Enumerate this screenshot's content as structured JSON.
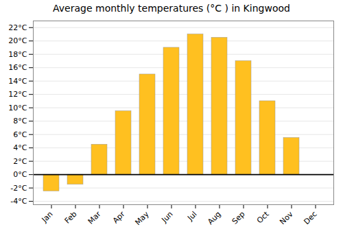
{
  "chart_data": {
    "type": "bar",
    "title": "Average monthly temperatures (°C ) in Kingwood",
    "categories": [
      "Jan",
      "Feb",
      "Mar",
      "Apr",
      "May",
      "Jun",
      "Jul",
      "Aug",
      "Sep",
      "Oct",
      "Nov",
      "Dec"
    ],
    "values": [
      -2.5,
      -1.5,
      4.5,
      9.5,
      15.0,
      19.0,
      21.0,
      20.5,
      17.0,
      11.0,
      5.5,
      0.0
    ],
    "color": "#FFC020",
    "ylim": [
      -4.5,
      23
    ],
    "yticks": [
      {
        "value": -4,
        "label": "-4°C"
      },
      {
        "value": -2,
        "label": "-2°C"
      },
      {
        "value": 0,
        "label": "0°C"
      },
      {
        "value": 2,
        "label": "2°C"
      },
      {
        "value": 4,
        "label": "4°C"
      },
      {
        "value": 6,
        "label": "6°C"
      },
      {
        "value": 8,
        "label": "8°C"
      },
      {
        "value": 10,
        "label": "10°C"
      },
      {
        "value": 12,
        "label": "12°C"
      },
      {
        "value": 14,
        "label": "14°C"
      },
      {
        "value": 16,
        "label": "16°C"
      },
      {
        "value": 18,
        "label": "18°C"
      },
      {
        "value": 20,
        "label": "20°C"
      },
      {
        "value": 22,
        "label": "22°C"
      }
    ],
    "grid": true
  }
}
